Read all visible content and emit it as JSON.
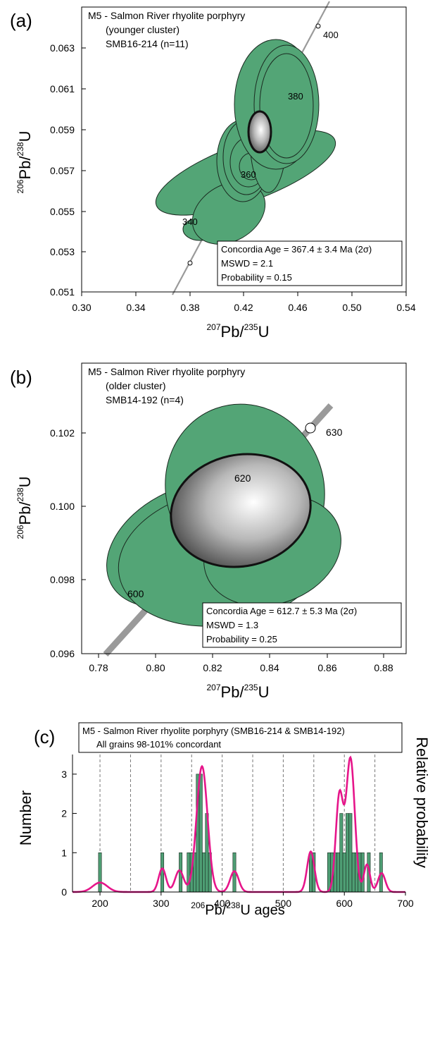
{
  "chart_data": [
    {
      "type": "concordia",
      "panel_label": "(a)",
      "title": "M5 - Salmon River rhyolite porphyry",
      "subtitle": "(younger cluster)",
      "sample": "SMB16-214 (n=11)",
      "xlabel": {
        "base1": "",
        "sup1": "207",
        "mid": "Pb/",
        "sup2": "235",
        "end": "U"
      },
      "ylabel": {
        "sup1": "206",
        "mid": "Pb/",
        "sup2": "238",
        "end": "U"
      },
      "xlim": [
        0.3,
        0.54
      ],
      "ylim": [
        0.051,
        0.0645
      ],
      "xticks": [
        "0.30",
        "0.34",
        "0.38",
        "0.42",
        "0.46",
        "0.50",
        "0.54"
      ],
      "yticks": [
        "0.051",
        "0.053",
        "0.055",
        "0.057",
        "0.059",
        "0.061",
        "0.063"
      ],
      "concordia_ages": [
        {
          "label": "340",
          "x": 0.3976,
          "y": 0.0541
        },
        {
          "label": "360",
          "x": 0.4236,
          "y": 0.0574
        },
        {
          "label": "380",
          "x": 0.4506,
          "y": 0.0607
        },
        {
          "label": "400",
          "x": 0.4791,
          "y": 0.064
        }
      ],
      "concordia_markers": [
        {
          "x": 0.383,
          "y": 0.0526
        },
        {
          "x": 0.482,
          "y": 0.0637
        }
      ],
      "result": {
        "age": "Concordia Age = 367.4 ± 3.4 Ma (2σ)",
        "mswd": "MSWD = 2.1",
        "probability": "Probability = 0.15"
      },
      "concordia_age_value_ma": 367.4,
      "concordia_age_error_ma": 3.4,
      "mswd_value": 2.1,
      "probability_value": 0.15,
      "n": 11
    },
    {
      "type": "concordia",
      "panel_label": "(b)",
      "title": "M5 - Salmon River rhyolite porphyry",
      "subtitle": "(older cluster)",
      "sample": "SMB14-192 (n=4)",
      "xlabel": {
        "sup1": "207",
        "mid": "Pb/",
        "sup2": "235",
        "end": "U"
      },
      "ylabel": {
        "sup1": "206",
        "mid": "Pb/",
        "sup2": "238",
        "end": "U"
      },
      "xlim": [
        0.78,
        0.89
      ],
      "ylim": [
        0.096,
        0.1038
      ],
      "xticks": [
        "0.78",
        "0.80",
        "0.82",
        "0.84",
        "0.86",
        "0.88"
      ],
      "yticks": [
        "0.096",
        "0.098",
        "0.100",
        "0.102"
      ],
      "concordia_ages": [
        {
          "label": "600",
          "x": 0.7986,
          "y": 0.0976
        },
        {
          "label": "620",
          "x": 0.8436,
          "y": 0.101
        },
        {
          "label": "630",
          "x": 0.8646,
          "y": 0.1027
        }
      ],
      "concordia_markers": [
        {
          "x": 0.86,
          "y": 0.1027
        }
      ],
      "result": {
        "age": "Concordia Age = 612.7 ± 5.3 Ma (2σ)",
        "mswd": "MSWD = 1.3",
        "probability": "Probability = 0.25"
      },
      "concordia_age_value_ma": 612.7,
      "concordia_age_error_ma": 5.3,
      "mswd_value": 1.3,
      "probability_value": 0.25,
      "n": 4
    },
    {
      "type": "bar",
      "panel_label": "(c)",
      "title": "M5 - Salmon River rhyolite porphyry (SMB16-214 & SMB14-192)",
      "subtitle": "All grains 98-101% concordant",
      "xlabel": {
        "sup1": "206",
        "mid": "Pb/",
        "sup2": "238",
        "end": "U ages"
      },
      "ylabel": "Number",
      "ylabel_right": "Relative probability",
      "xlim": [
        155,
        700
      ],
      "ylim": [
        0,
        3.5
      ],
      "xticks": [
        "200",
        "300",
        "400",
        "500",
        "600",
        "700"
      ],
      "yticks": [
        "0",
        "1",
        "2",
        "3"
      ],
      "dashed_gridlines_x": [
        200,
        250,
        300,
        350,
        400,
        450,
        500,
        550,
        600,
        650
      ],
      "histogram_bins": [
        {
          "age": 200,
          "count": 1
        },
        {
          "age": 302,
          "count": 1
        },
        {
          "age": 332,
          "count": 1
        },
        {
          "age": 345,
          "count": 1
        },
        {
          "age": 350,
          "count": 1
        },
        {
          "age": 355,
          "count": 1
        },
        {
          "age": 360,
          "count": 3
        },
        {
          "age": 365,
          "count": 3
        },
        {
          "age": 370,
          "count": 1
        },
        {
          "age": 375,
          "count": 2
        },
        {
          "age": 380,
          "count": 1
        },
        {
          "age": 420,
          "count": 1
        },
        {
          "age": 545,
          "count": 1
        },
        {
          "age": 550,
          "count": 1
        },
        {
          "age": 575,
          "count": 1
        },
        {
          "age": 580,
          "count": 1
        },
        {
          "age": 585,
          "count": 1
        },
        {
          "age": 590,
          "count": 1
        },
        {
          "age": 595,
          "count": 2
        },
        {
          "age": 600,
          "count": 1
        },
        {
          "age": 605,
          "count": 2
        },
        {
          "age": 610,
          "count": 2
        },
        {
          "age": 615,
          "count": 1
        },
        {
          "age": 620,
          "count": 1
        },
        {
          "age": 625,
          "count": 1
        },
        {
          "age": 630,
          "count": 1
        },
        {
          "age": 640,
          "count": 1
        },
        {
          "age": 660,
          "count": 1
        }
      ],
      "probability_peaks": [
        {
          "age": 200,
          "height": 0.24,
          "sigma": 12
        },
        {
          "age": 302,
          "height": 0.6,
          "sigma": 6
        },
        {
          "age": 330,
          "height": 0.55,
          "sigma": 7
        },
        {
          "age": 367,
          "height": 3.2,
          "sigma": 9
        },
        {
          "age": 420,
          "height": 0.53,
          "sigma": 7
        },
        {
          "age": 545,
          "height": 1.03,
          "sigma": 6
        },
        {
          "age": 592,
          "height": 2.45,
          "sigma": 6
        },
        {
          "age": 610,
          "height": 3.4,
          "sigma": 7
        },
        {
          "age": 637,
          "height": 0.7,
          "sigma": 5
        },
        {
          "age": 661,
          "height": 0.48,
          "sigma": 6
        }
      ],
      "colors": {
        "bar": "#4e9e74",
        "curve": "#e6158a"
      }
    }
  ],
  "colors": {
    "ellipse_fill": "#53a576",
    "ellipse_stroke": "#1a2a20",
    "concordia": "#9a9a9a",
    "probability_curve": "#e6158a"
  }
}
